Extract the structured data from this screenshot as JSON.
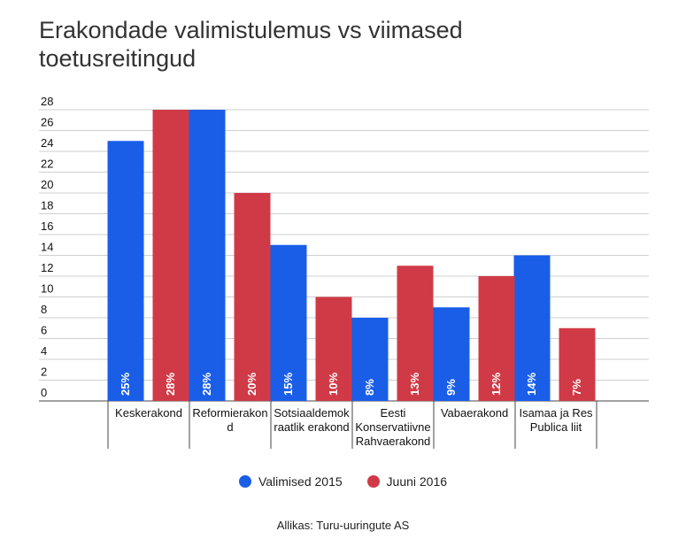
{
  "chart_data": {
    "type": "bar",
    "title": "Erakondade valimistulemus vs viimased toetusreitingud",
    "categories": [
      "Keskerakond",
      "Reformierakond",
      "Sotsiaaldemokraatlik erakond",
      "Eesti Konservatiivne Rahvaerakond",
      "Vabaerakond",
      "Isamaa ja Res Publica liit"
    ],
    "category_labels": [
      [
        "Keskerakond"
      ],
      [
        "Reformierakon",
        "d"
      ],
      [
        "Sotsiaaldemok",
        "raatlik erakond"
      ],
      [
        "Eesti",
        "Konservatiivne",
        "Rahvaerakond"
      ],
      [
        "Vabaerakond"
      ],
      [
        "Isamaa ja Res",
        "Publica liit"
      ]
    ],
    "series": [
      {
        "name": "Valimised 2015",
        "color": "#1a5ee8",
        "values": [
          25,
          28,
          15,
          8,
          9,
          14
        ],
        "labels": [
          "25%",
          "28%",
          "15%",
          "8%",
          "9%",
          "14%"
        ]
      },
      {
        "name": "Juuni 2016",
        "color": "#d03a46",
        "values": [
          28,
          20,
          10,
          13,
          12,
          7
        ],
        "labels": [
          "28%",
          "20%",
          "10%",
          "13%",
          "12%",
          "7%"
        ]
      }
    ],
    "yticks": [
      "0",
      "2",
      "4",
      "6",
      "8",
      "10",
      "12",
      "14",
      "16",
      "18",
      "20",
      "22",
      "24",
      "26",
      "28"
    ],
    "ylim": [
      0,
      28
    ],
    "grid": true,
    "legend_position": "bottom",
    "source": "Allikas: Turu-uuringute AS"
  }
}
